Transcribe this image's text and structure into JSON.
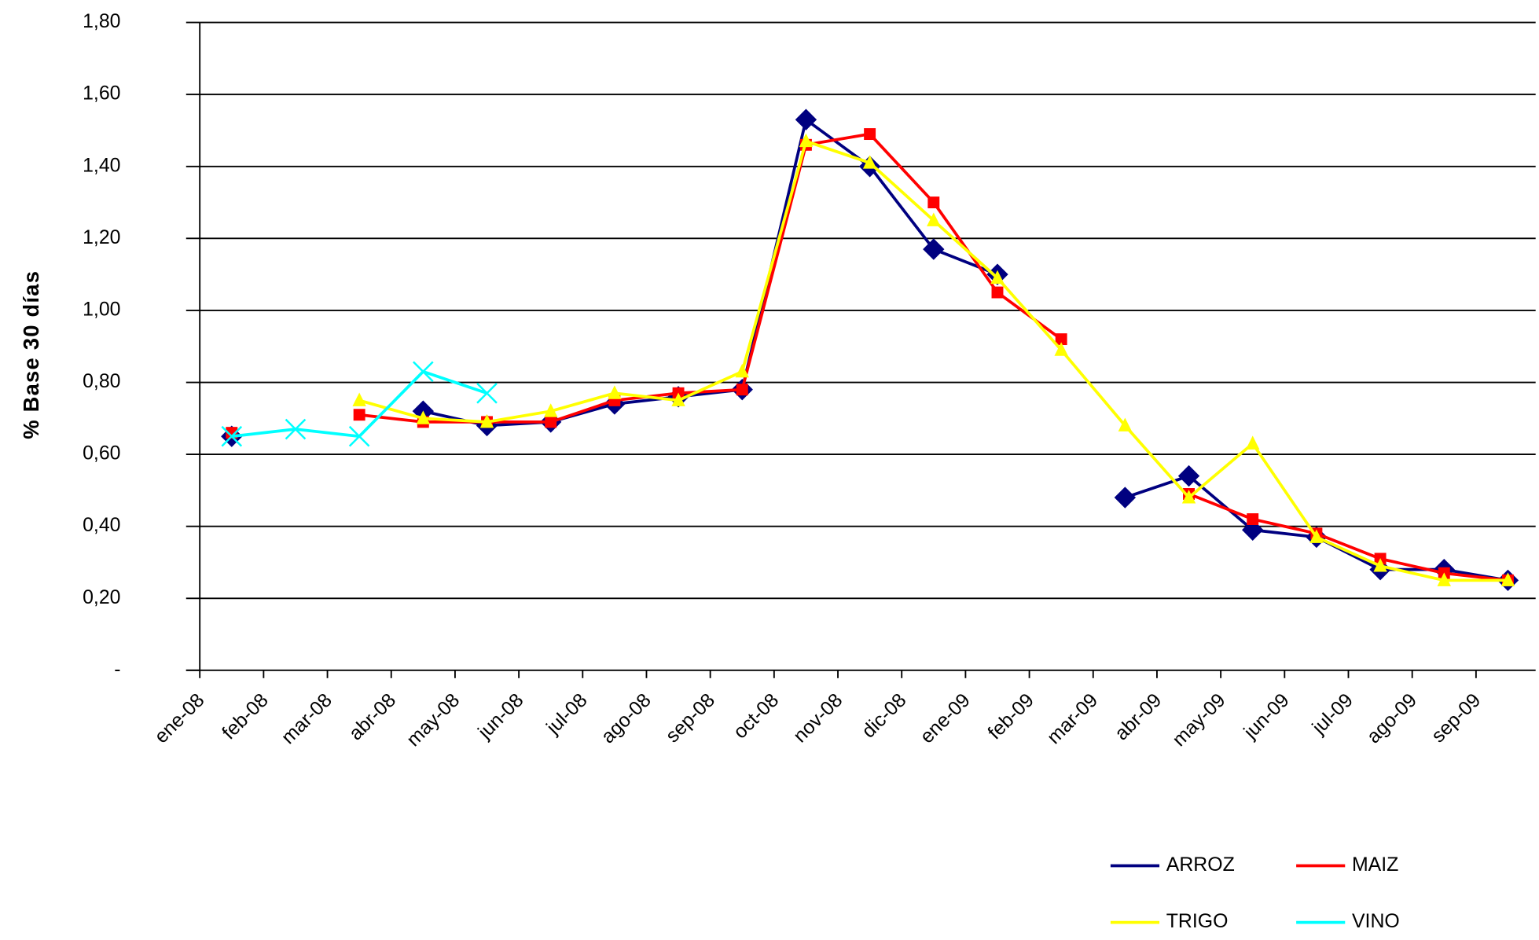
{
  "chart_data": {
    "type": "line",
    "y_label": "% Base 30 días",
    "categories": [
      "ene-08",
      "feb-08",
      "mar-08",
      "abr-08",
      "may-08",
      "jun-08",
      "jul-08",
      "ago-08",
      "sep-08",
      "oct-08",
      "nov-08",
      "dic-08",
      "ene-09",
      "feb-09",
      "mar-09",
      "abr-09",
      "may-09",
      "jun-09",
      "jul-09",
      "ago-09",
      "sep-09",
      null
    ],
    "ylim": [
      0,
      1.8
    ],
    "yticks": [
      {
        "value": 0,
        "label": "-"
      },
      {
        "value": 0.2,
        "label": "0,20"
      },
      {
        "value": 0.4,
        "label": "0,40"
      },
      {
        "value": 0.6,
        "label": "0,60"
      },
      {
        "value": 0.8,
        "label": "0,80"
      },
      {
        "value": 1.0,
        "label": "1,00"
      },
      {
        "value": 1.2,
        "label": "1,20"
      },
      {
        "value": 1.4,
        "label": "1,40"
      },
      {
        "value": 1.6,
        "label": "1,60"
      },
      {
        "value": 1.8,
        "label": "1,80"
      }
    ],
    "grid": true,
    "series": [
      {
        "name": "ARROZ",
        "color": "#000080",
        "marker": "diamond",
        "values": [
          0.65,
          null,
          null,
          0.72,
          0.68,
          0.69,
          0.74,
          0.76,
          0.78,
          1.53,
          1.4,
          1.17,
          1.1,
          null,
          0.48,
          0.54,
          0.39,
          0.37,
          0.28,
          0.28,
          0.25,
          null
        ]
      },
      {
        "name": "MAIZ",
        "color": "#ff0000",
        "marker": "square",
        "values": [
          0.66,
          null,
          0.71,
          0.69,
          0.69,
          0.69,
          0.75,
          0.77,
          0.78,
          1.46,
          1.49,
          1.3,
          1.05,
          0.92,
          null,
          0.49,
          0.42,
          0.38,
          0.31,
          0.27,
          0.25,
          null
        ]
      },
      {
        "name": "TRIGO",
        "color": "#ffff00",
        "marker": "triangle",
        "values": [
          null,
          null,
          0.75,
          0.7,
          0.69,
          0.72,
          0.77,
          0.75,
          0.83,
          1.47,
          1.41,
          1.25,
          1.09,
          0.89,
          0.68,
          0.48,
          0.63,
          0.37,
          0.29,
          0.25,
          0.25,
          null
        ]
      },
      {
        "name": "VINO",
        "color": "#00ffff",
        "marker": "x",
        "values": [
          0.65,
          0.67,
          0.65,
          0.83,
          0.77,
          null,
          null,
          null,
          null,
          null,
          null,
          null,
          null,
          null,
          null,
          null,
          null,
          null,
          null,
          null,
          null,
          null
        ]
      }
    ]
  }
}
